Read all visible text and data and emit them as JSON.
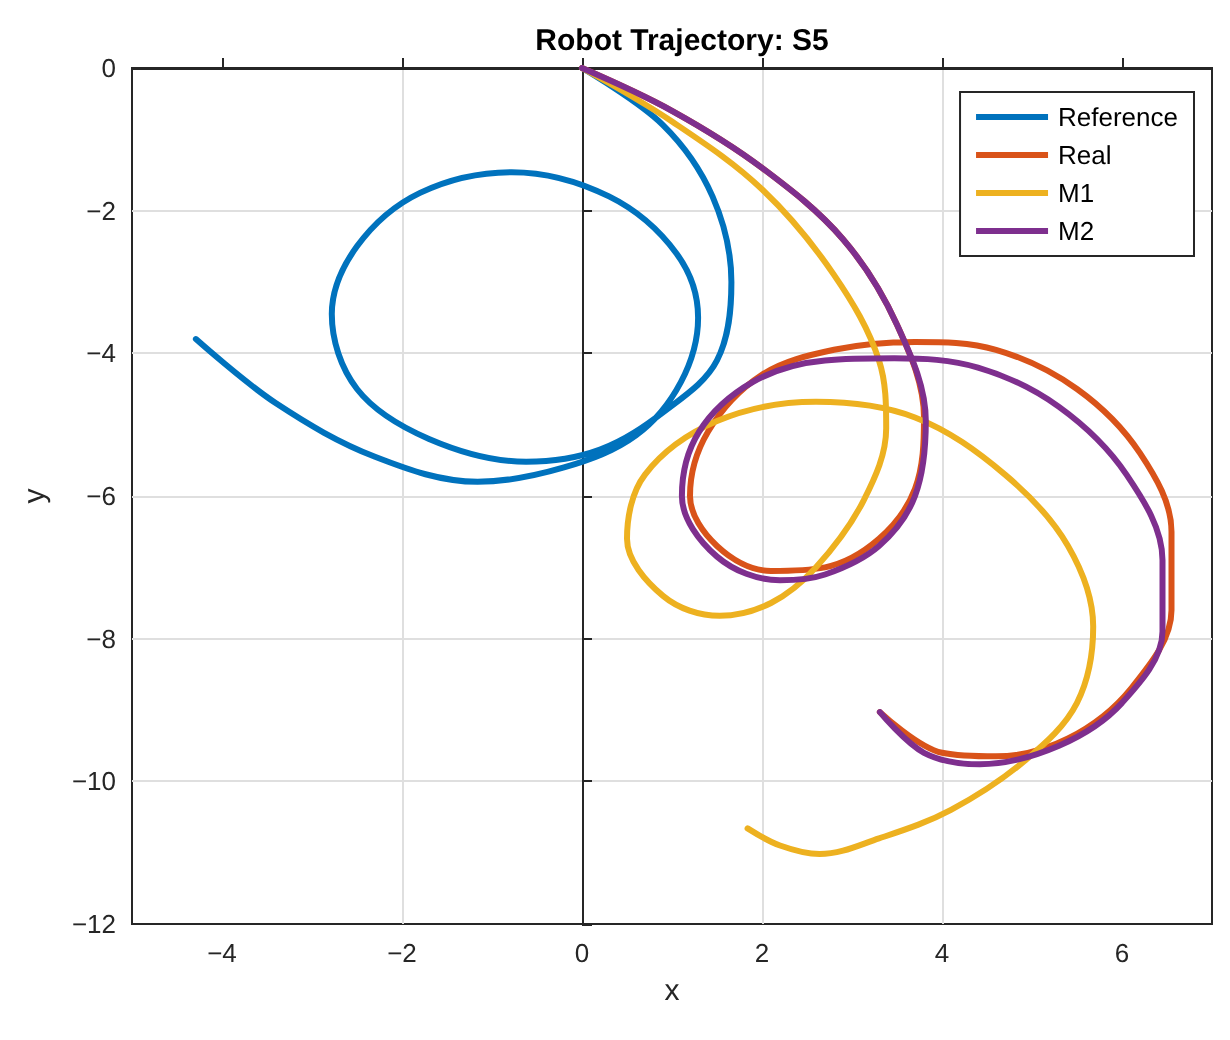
{
  "chart_data": {
    "type": "line",
    "title": "Robot Trajectory: S5",
    "xlabel": "x",
    "ylabel": "y",
    "xlim": [
      -5,
      7
    ],
    "ylim": [
      -12,
      0
    ],
    "xticks": [
      -4,
      -2,
      0,
      2,
      4,
      6
    ],
    "yticks": [
      -12,
      -10,
      -8,
      -6,
      -4,
      -2,
      0
    ],
    "grid": true,
    "legend": "top right",
    "marker": "none",
    "line_style": "solid",
    "series": [
      {
        "name": "Reference",
        "color": "#0072bd",
        "x": [
          0,
          0.9,
          1.45,
          1.66,
          1.5,
          0.93,
          0.2,
          -0.62,
          -1.7,
          -2.5,
          -2.78,
          -2.5,
          -1.8,
          -0.78,
          0.3,
          1.05,
          1.29,
          1.1,
          0.6,
          -0.2,
          -1.16,
          -2.3,
          -3.4,
          -4.29
        ],
        "values": [
          0,
          -0.8,
          -1.8,
          -3.0,
          -4.1,
          -4.8,
          -5.35,
          -5.52,
          -5.2,
          -4.5,
          -3.45,
          -2.5,
          -1.75,
          -1.46,
          -1.8,
          -2.6,
          -3.5,
          -4.4,
          -5.15,
          -5.6,
          -5.8,
          -5.45,
          -4.7,
          -3.8
        ]
      },
      {
        "name": "Real",
        "color": "#d95319",
        "x": [
          0,
          1,
          2,
          2.9,
          3.5,
          3.8,
          3.7,
          3.3,
          2.7,
          2.1,
          1.5,
          1.2,
          1.4,
          2,
          2.8,
          3.7,
          4.6,
          5.5,
          6.2,
          6.55,
          6.55,
          6.1,
          5.4,
          4.6,
          4.0,
          3.31
        ],
        "values": [
          0,
          -0.6,
          -1.4,
          -2.4,
          -3.6,
          -4.9,
          -5.9,
          -6.6,
          -7.0,
          -7.05,
          -6.7,
          -6.0,
          -5.1,
          -4.3,
          -3.95,
          -3.84,
          -3.95,
          -4.5,
          -5.4,
          -6.5,
          -7.6,
          -8.7,
          -9.4,
          -9.65,
          -9.6,
          -9.03
        ]
      },
      {
        "name": "M1",
        "color": "#edb120",
        "x": [
          0,
          1,
          2,
          2.8,
          3.3,
          3.38,
          3.13,
          2.6,
          2.1,
          1.53,
          0.9,
          0.5,
          0.7,
          1.5,
          2.6,
          3.7,
          4.7,
          5.4,
          5.68,
          5.5,
          4.93,
          4.1,
          3.3,
          2.64,
          2.2,
          1.84
        ],
        "values": [
          0,
          -0.75,
          -1.7,
          -2.9,
          -4.1,
          -5.05,
          -6.06,
          -7.0,
          -7.5,
          -7.68,
          -7.4,
          -6.6,
          -5.7,
          -4.95,
          -4.68,
          -4.9,
          -5.7,
          -6.7,
          -7.83,
          -8.9,
          -9.7,
          -10.4,
          -10.8,
          -11.02,
          -10.9,
          -10.66
        ]
      },
      {
        "name": "M2",
        "color": "#7e2f8e",
        "x": [
          0,
          1,
          2,
          2.9,
          3.5,
          3.82,
          3.7,
          3.3,
          2.7,
          2.2,
          1.5,
          1.11,
          1.3,
          1.9,
          2.7,
          3.47,
          4.4,
          5.3,
          6.05,
          6.45,
          6.45,
          6.0,
          5.3,
          4.42,
          3.8,
          3.31
        ],
        "values": [
          0,
          -0.6,
          -1.4,
          -2.4,
          -3.6,
          -4.95,
          -6.0,
          -6.7,
          -7.1,
          -7.18,
          -6.85,
          -6.0,
          -5.1,
          -4.4,
          -4.1,
          -4.07,
          -4.2,
          -4.75,
          -5.7,
          -6.9,
          -7.9,
          -8.9,
          -9.5,
          -9.76,
          -9.6,
          -9.03
        ]
      }
    ]
  }
}
